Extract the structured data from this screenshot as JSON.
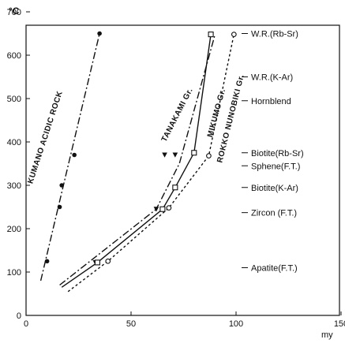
{
  "chart_data": {
    "type": "line",
    "y_unit": "°C",
    "x_unit": "my",
    "xlim": [
      0,
      150
    ],
    "ylim": [
      0,
      700
    ],
    "x_ticks": [
      "0",
      "50",
      "100",
      "150"
    ],
    "y_ticks": [
      "0",
      "100",
      "200",
      "300",
      "400",
      "500",
      "600",
      "700"
    ],
    "grid": false,
    "series": [
      {
        "name": "KUMANO ACIDIC ROCK",
        "style": "dash-dot",
        "marker": "filled-circle",
        "line": [
          [
            7,
            80
          ],
          [
            35,
            650
          ]
        ],
        "points": [
          [
            35,
            650
          ],
          [
            23,
            370
          ],
          [
            17,
            300
          ],
          [
            16,
            250
          ],
          [
            10,
            125
          ]
        ]
      },
      {
        "name": "TANAKAMI Gr.",
        "style": "dash-dot",
        "marker": "filled-triangle",
        "line": [
          [
            16,
            70
          ],
          [
            62,
            245
          ],
          [
            73,
            350
          ],
          [
            90,
            648
          ]
        ],
        "points": [
          [
            33,
            122
          ],
          [
            62,
            245
          ],
          [
            66,
            370
          ],
          [
            71,
            370
          ]
        ]
      },
      {
        "name": "MIKUMO Gr.",
        "style": "solid",
        "marker": "open-square",
        "line": [
          [
            17,
            65
          ],
          [
            34,
            122
          ],
          [
            65,
            245
          ],
          [
            71,
            295
          ],
          [
            80,
            375
          ],
          [
            88,
            648
          ]
        ],
        "points": [
          [
            34,
            122
          ],
          [
            65,
            245
          ],
          [
            71,
            295
          ],
          [
            80,
            375
          ],
          [
            88,
            648
          ]
        ]
      },
      {
        "name": "ROKKO NUNOBIKI Gr.",
        "style": "dotted",
        "marker": "open-circle",
        "line": [
          [
            20,
            55
          ],
          [
            39,
            125
          ],
          [
            68,
            248
          ],
          [
            87,
            368
          ],
          [
            99,
            648
          ]
        ],
        "points": [
          [
            39,
            125
          ],
          [
            68,
            248
          ],
          [
            87,
            368
          ],
          [
            99,
            648
          ]
        ]
      }
    ],
    "reference_labels": [
      {
        "label": "W.R.(Rb-Sr)",
        "y": 650
      },
      {
        "label": "W.R.(K-Ar)",
        "y": 550
      },
      {
        "label": "Hornblend",
        "y": 495
      },
      {
        "label": "Biotite(Rb-Sr)",
        "y": 375
      },
      {
        "label": "Sphene(F.T.)",
        "y": 345
      },
      {
        "label": "Biotite(K-Ar)",
        "y": 295
      },
      {
        "label": "Zircon (F.T.)",
        "y": 237
      },
      {
        "label": "Apatite(F.T.)",
        "y": 110
      }
    ]
  }
}
